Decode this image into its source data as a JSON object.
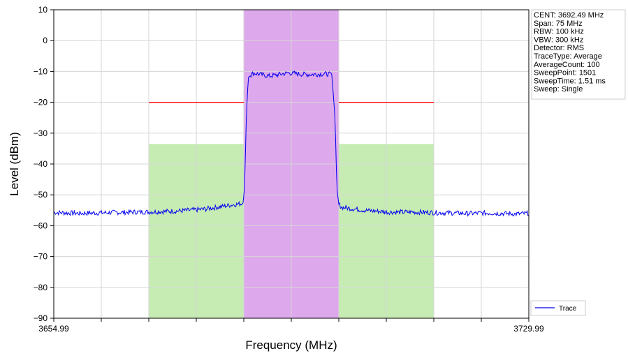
{
  "chart_data": {
    "type": "line",
    "xlabel": "Frequency (MHz)",
    "ylabel": "Level (dBm)",
    "xlim": [
      3654.99,
      3729.99
    ],
    "ylim": [
      -90,
      10
    ],
    "x_ticklabels": [
      "3654.99",
      "3729.99"
    ],
    "y_ticks": [
      10,
      0,
      -10,
      -20,
      -30,
      -40,
      -50,
      -60,
      -70,
      -80,
      -90
    ],
    "y_ticklabels": [
      "10",
      "0",
      "−10",
      "−20",
      "−30",
      "−40",
      "−50",
      "−60",
      "−70",
      "−80",
      "−90"
    ],
    "grid": true,
    "legend": {
      "placement": "bottom-right",
      "entries": [
        "Trace"
      ]
    },
    "colors": {
      "trace": "#0000ee",
      "channel_band": "#dda8ec",
      "adjacent_band": "#c6ecb4",
      "limit_line": "#ff0000",
      "grid": "#d6d6d6"
    },
    "regions": [
      {
        "name": "lower-adjacent",
        "x": [
          3669.99,
          3684.99
        ],
        "y_top": -33.5,
        "color": "#c6ecb4"
      },
      {
        "name": "channel",
        "x": [
          3684.99,
          3699.99
        ],
        "y_top": 10,
        "color": "#dda8ec"
      },
      {
        "name": "upper-adjacent",
        "x": [
          3699.99,
          3714.99
        ],
        "y_top": -33.5,
        "color": "#c6ecb4"
      }
    ],
    "limit_lines": [
      {
        "x": [
          3669.99,
          3684.99
        ],
        "y": -20
      },
      {
        "x": [
          3699.99,
          3714.99
        ],
        "y": -20
      }
    ],
    "series": [
      {
        "name": "Trace",
        "x": [
          3654.99,
          3658.99,
          3662.99,
          3666.99,
          3670.99,
          3674.99,
          3678.99,
          3682.99,
          3684.79,
          3685.09,
          3685.39,
          3685.69,
          3686.49,
          3688.99,
          3691.99,
          3694.99,
          3697.99,
          3698.89,
          3699.39,
          3699.69,
          3699.99,
          3700.39,
          3703.99,
          3707.99,
          3711.99,
          3715.99,
          3719.99,
          3723.99,
          3727.99,
          3729.99
        ],
        "y": [
          -55.7,
          -56.0,
          -55.8,
          -55.6,
          -55.5,
          -55.2,
          -54.6,
          -53.3,
          -52.8,
          -49,
          -25,
          -12,
          -10.5,
          -11.5,
          -10.5,
          -11.0,
          -10.8,
          -11,
          -25,
          -48,
          -53.0,
          -54.0,
          -55.0,
          -55.6,
          -55.6,
          -55.8,
          -56.0,
          -55.9,
          -56.2,
          -56.0
        ]
      }
    ],
    "info_box": [
      "CENT: 3692.49 MHz",
      "Span: 75 MHz",
      "RBW: 100 kHz",
      "VBW: 300 kHz",
      "Detector: RMS",
      "TraceType: Average",
      "AverageCount: 100",
      "SweepPoint: 1501",
      "SweepTime: 1.51 ms",
      "Sweep: Single"
    ]
  }
}
